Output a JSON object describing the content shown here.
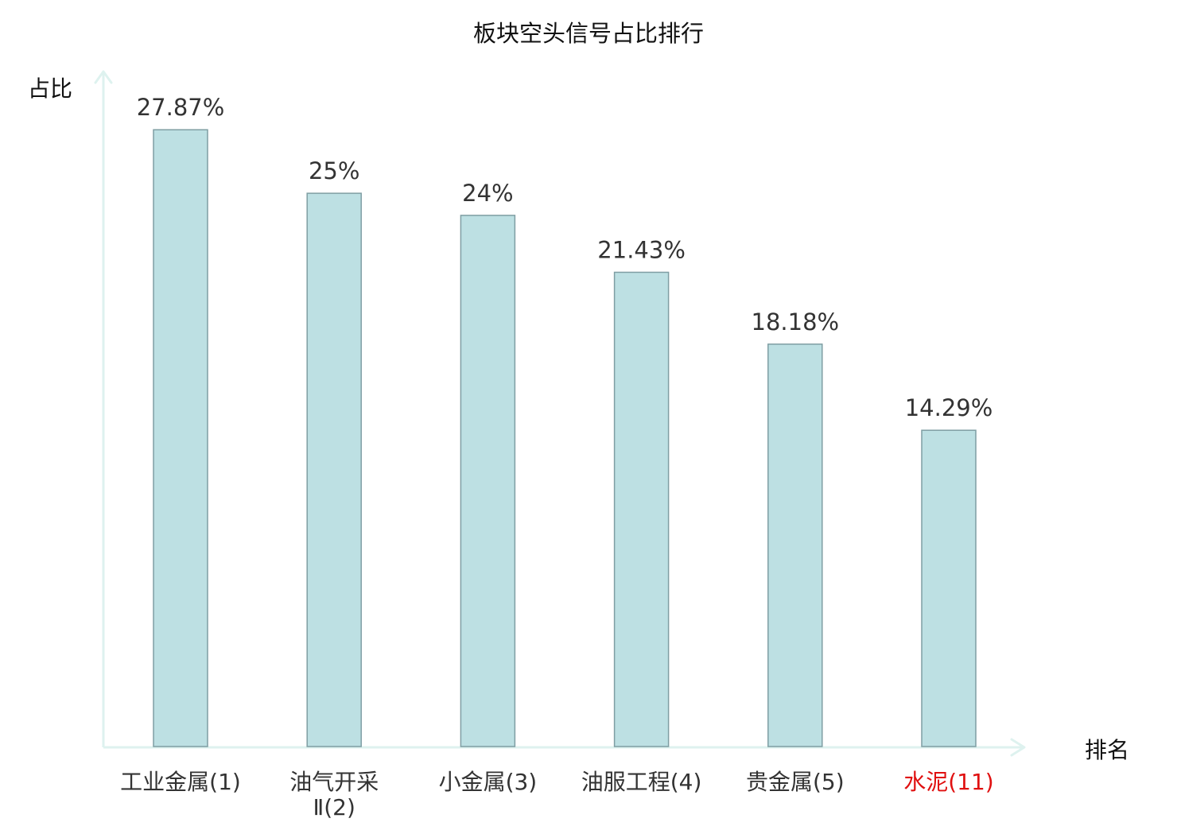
{
  "chart_data": {
    "type": "bar",
    "title": "板块空头信号占比排行",
    "ylabel": "占比",
    "xlabel": "排名",
    "ylim": [
      0,
      30.5
    ],
    "grid": false,
    "categories": [
      {
        "name": "工业金属",
        "rank": "(1)",
        "lines": [
          "工业金属(1)"
        ]
      },
      {
        "name": "油气开采Ⅱ",
        "rank": "(2)",
        "lines": [
          "油气开采",
          "Ⅱ(2)"
        ]
      },
      {
        "name": "小金属",
        "rank": "(3)",
        "lines": [
          "小金属(3)"
        ]
      },
      {
        "name": "油服工程",
        "rank": "(4)",
        "lines": [
          "油服工程(4)"
        ]
      },
      {
        "name": "贵金属",
        "rank": "(5)",
        "lines": [
          "贵金属(5)"
        ]
      },
      {
        "name": "水泥",
        "rank": "(11)",
        "lines": [
          "水泥(11)"
        ],
        "highlight": true
      }
    ],
    "values": [
      27.87,
      25,
      24,
      21.43,
      18.18,
      14.29
    ],
    "value_labels": [
      "27.87%",
      "25%",
      "24%",
      "21.43%",
      "18.18%",
      "14.29%"
    ]
  },
  "colors": {
    "bar_fill": "#bde0e3",
    "bar_stroke": "#7f9ea3",
    "axis": "#def2ef",
    "text": "#333333",
    "title_text": "#111111",
    "highlight_text": "#e01010"
  }
}
